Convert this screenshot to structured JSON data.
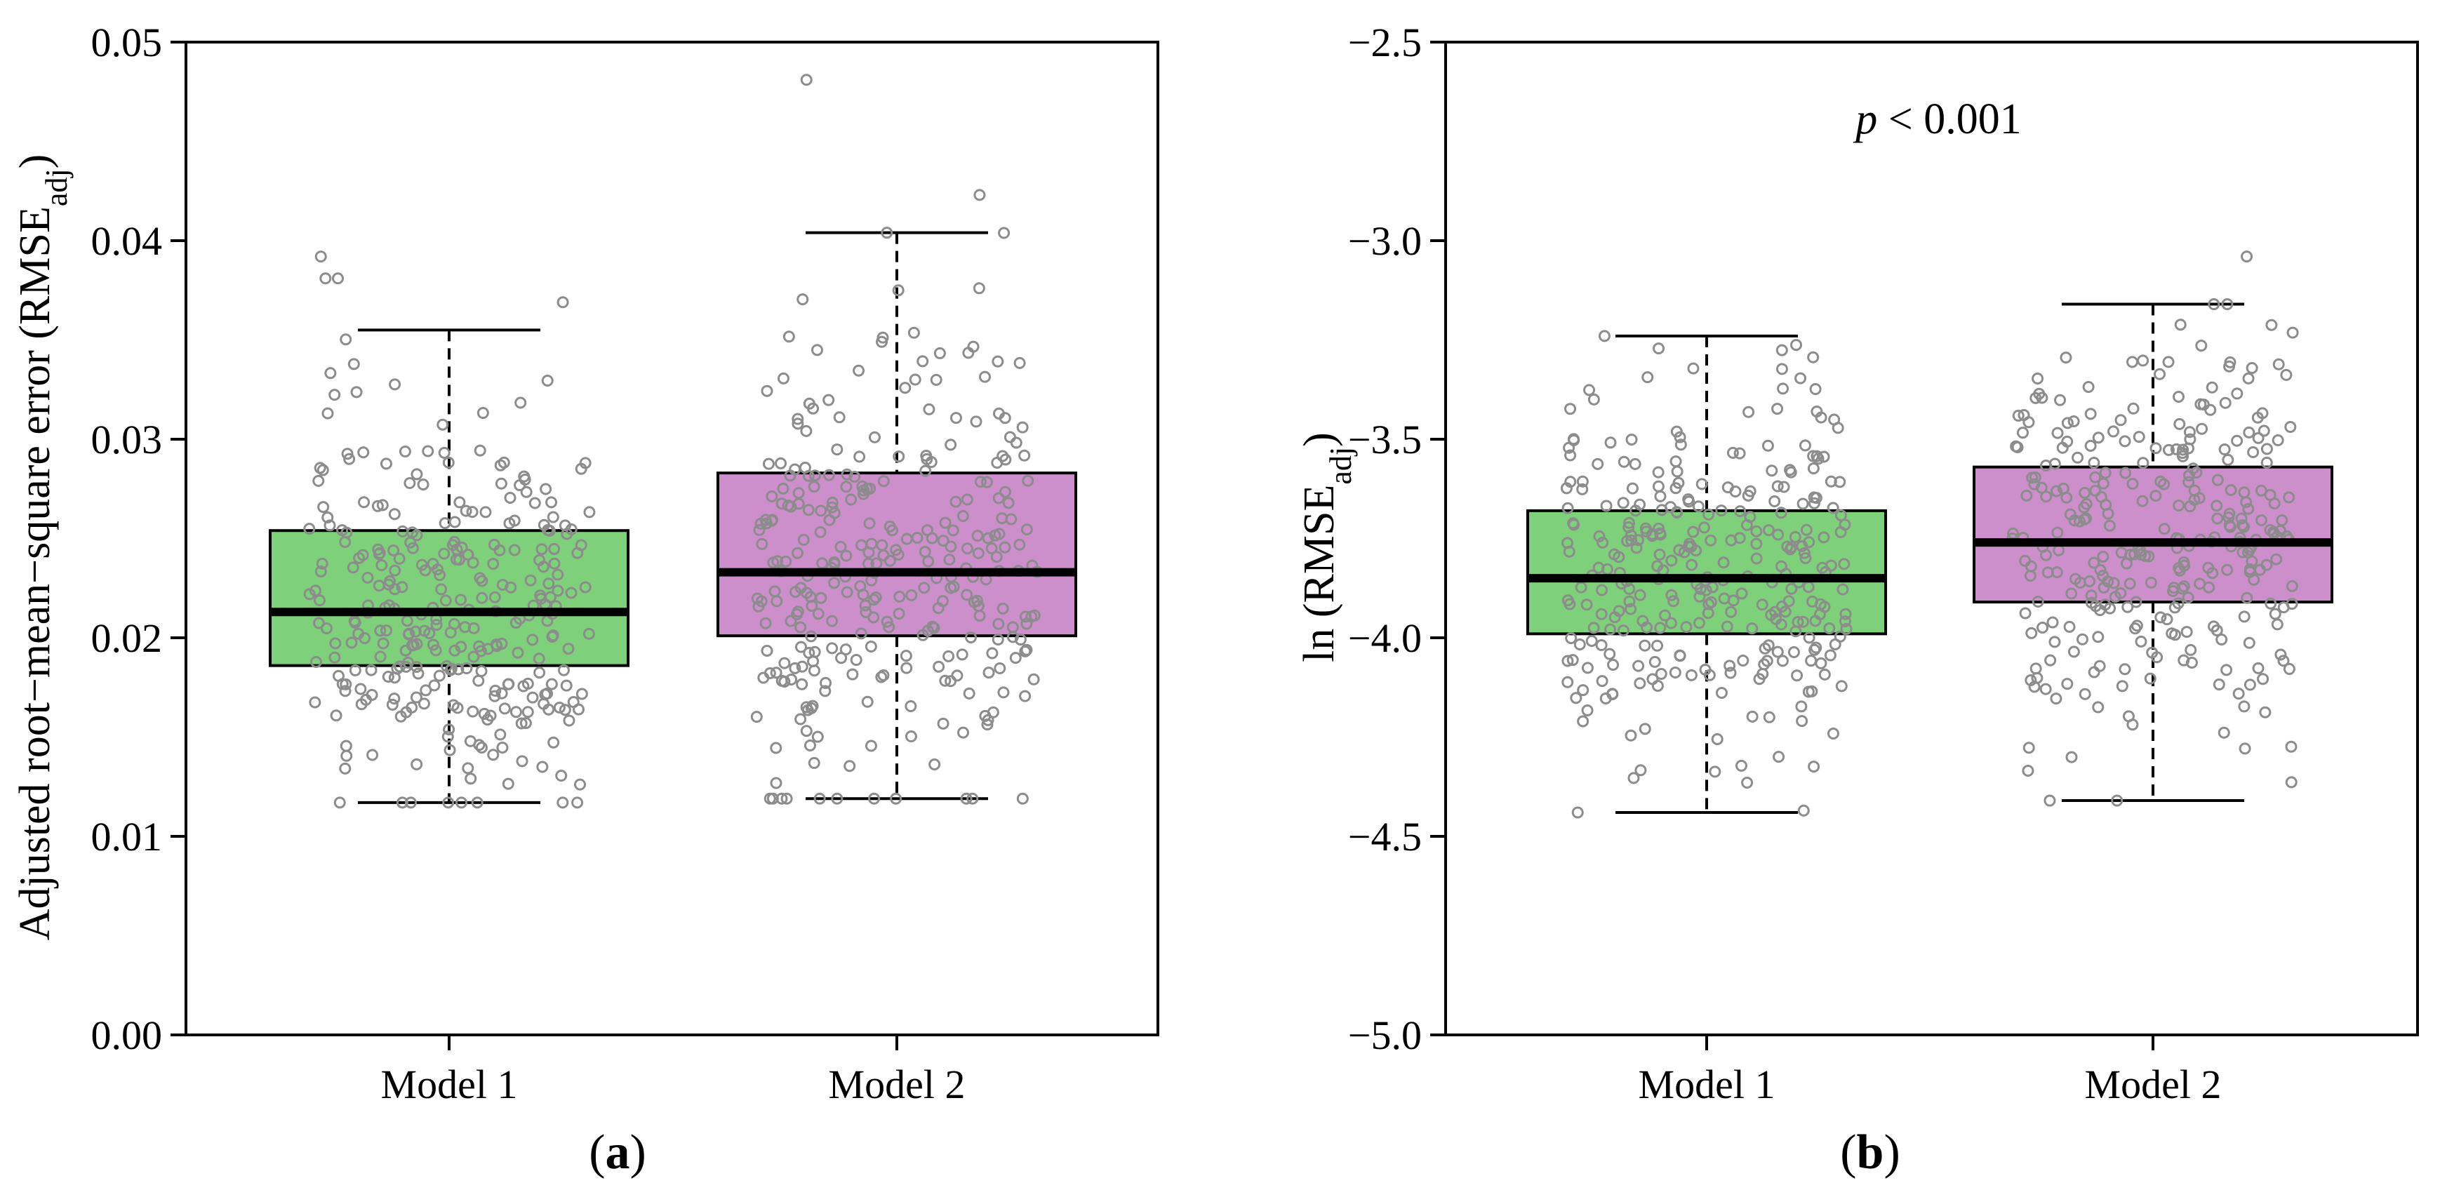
{
  "chart_data": [
    {
      "type": "box",
      "panel_label": "a",
      "ylabel": "Adjusted root−mean−square error (RMSE",
      "ylabel_sub": "adj",
      "ylabel_close": ")",
      "ylim": [
        0.0,
        0.05
      ],
      "yticks": [
        0.0,
        0.01,
        0.02,
        0.03,
        0.04,
        0.05
      ],
      "ytick_labels": [
        "0.00",
        "0.01",
        "0.02",
        "0.03",
        "0.04",
        "0.05"
      ],
      "categories": [
        "Model 1",
        "Model 2"
      ],
      "boxes": [
        {
          "name": "Model 1",
          "color": "#7fd07b",
          "whisker_low": 0.0117,
          "q1": 0.0186,
          "median": 0.0213,
          "q3": 0.0254,
          "whisker_high": 0.0355,
          "n_points": 300,
          "outliers": [
            0.0392,
            0.0381,
            0.0381,
            0.0369
          ]
        },
        {
          "name": "Model 2",
          "color": "#cc8fcc",
          "whisker_low": 0.0119,
          "q1": 0.0201,
          "median": 0.0233,
          "q3": 0.0283,
          "whisker_high": 0.0404,
          "n_points": 300,
          "outliers": [
            0.0481,
            0.0423
          ]
        }
      ],
      "point_color": "#8c8c8c",
      "annotation": ""
    },
    {
      "type": "box",
      "panel_label": "b",
      "ylabel": "ln (RMSE",
      "ylabel_sub": "adj",
      "ylabel_close": ")",
      "ylim": [
        -5.0,
        -2.5
      ],
      "yticks": [
        -5.0,
        -4.5,
        -4.0,
        -3.5,
        -3.0,
        -2.5
      ],
      "ytick_labels": [
        "−5.0",
        "−4.5",
        "−4.0",
        "−3.5",
        "−3.0",
        "−2.5"
      ],
      "categories": [
        "Model 1",
        "Model 2"
      ],
      "boxes": [
        {
          "name": "Model 1",
          "color": "#7fd07b",
          "whisker_low": -4.44,
          "q1": -3.99,
          "median": -3.85,
          "q3": -3.68,
          "whisker_high": -3.24,
          "n_points": 300,
          "outliers": []
        },
        {
          "name": "Model 2",
          "color": "#cc8fcc",
          "whisker_low": -4.41,
          "q1": -3.91,
          "median": -3.76,
          "q3": -3.57,
          "whisker_high": -3.16,
          "n_points": 300,
          "outliers": [
            -3.04
          ]
        }
      ],
      "point_color": "#8c8c8c",
      "annotation_p": "p",
      "annotation_rest": " < 0.001"
    }
  ]
}
